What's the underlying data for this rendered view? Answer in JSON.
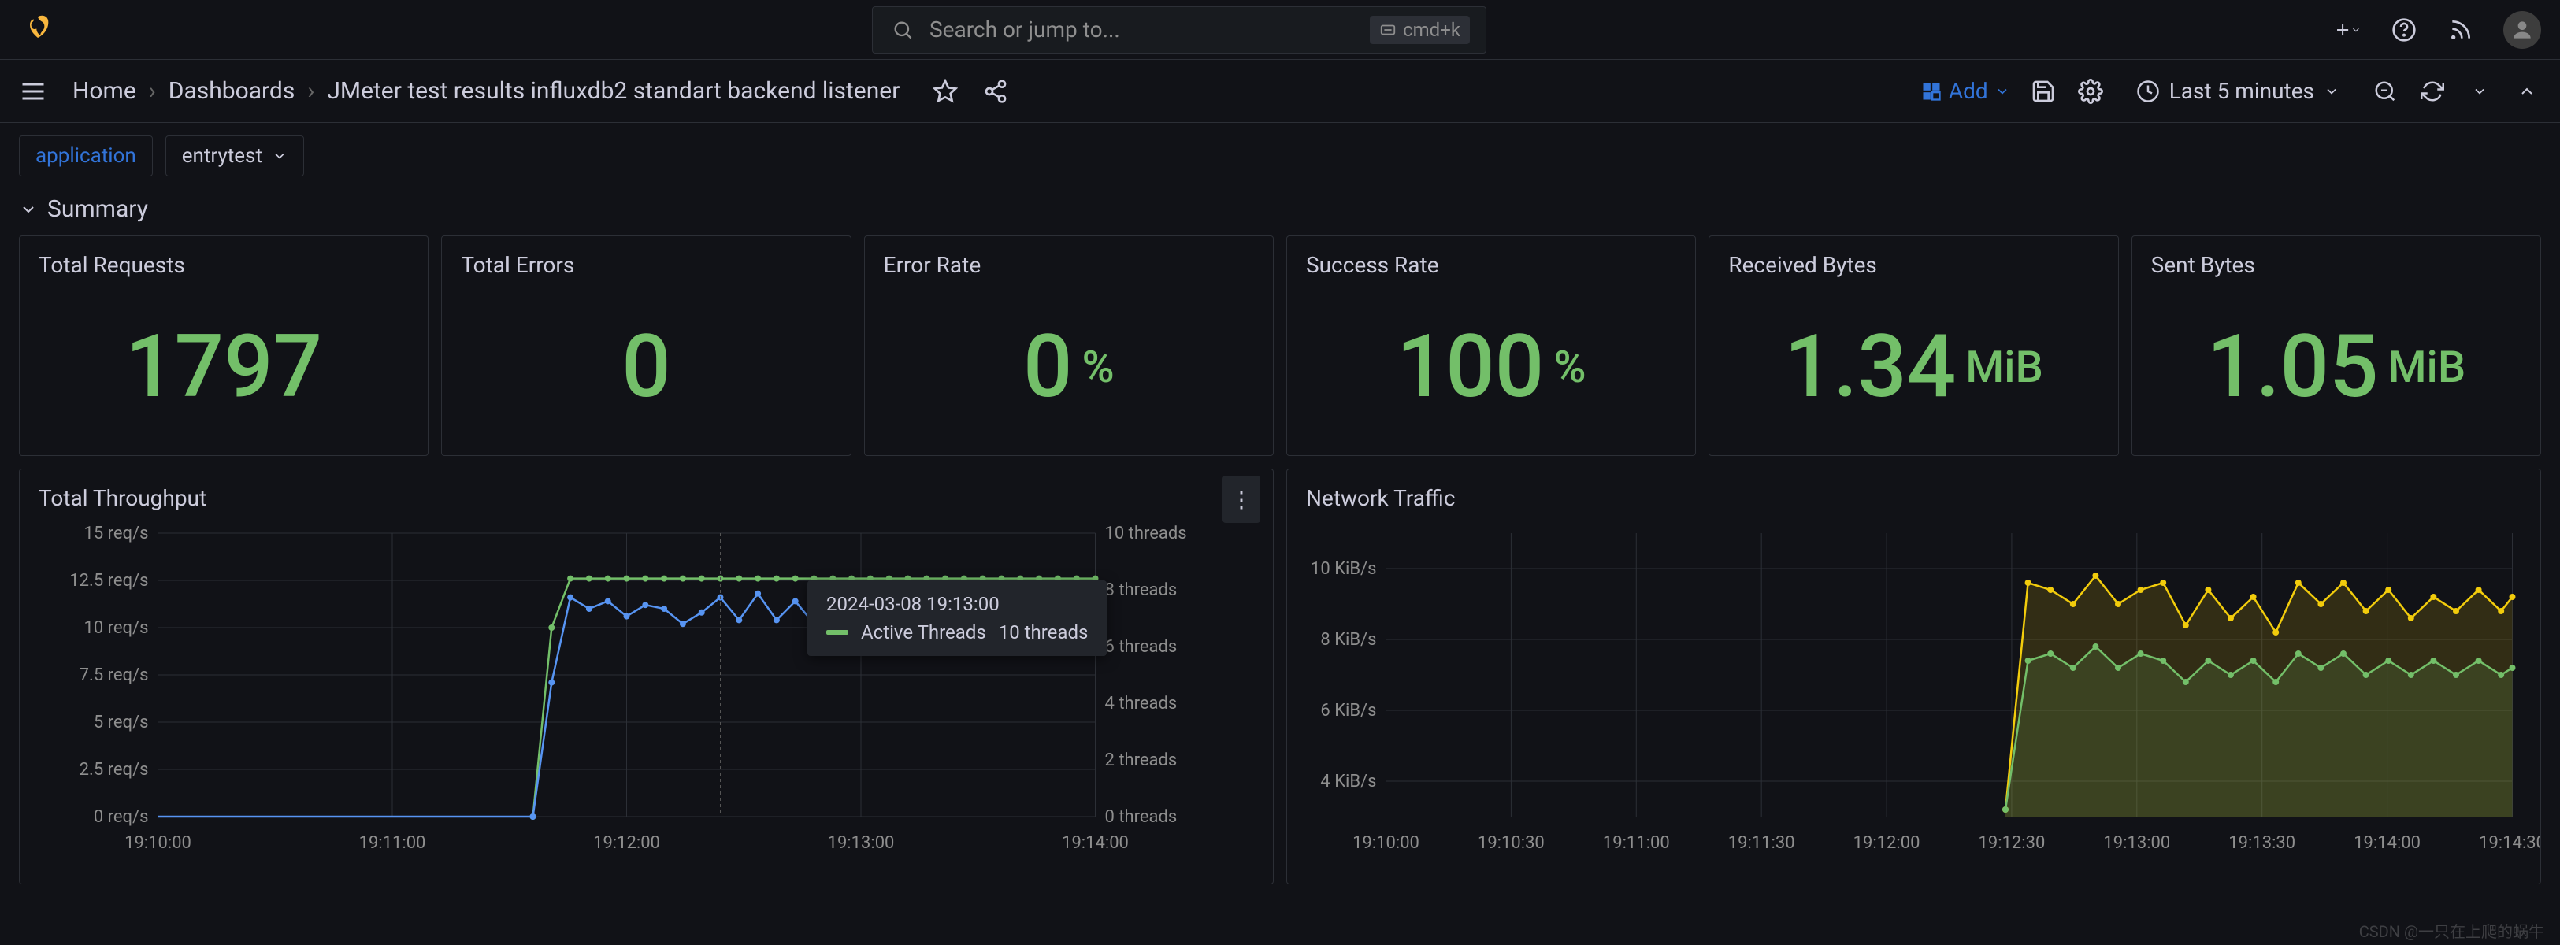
{
  "search": {
    "placeholder": "Search or jump to...",
    "shortcut": "cmd+k"
  },
  "breadcrumbs": {
    "home": "Home",
    "dashboards": "Dashboards",
    "title": "JMeter test results influxdb2 standart backend listener"
  },
  "toolbar": {
    "add": "Add",
    "time_label": "Last 5 minutes"
  },
  "vars": {
    "var1_label": "application",
    "var1_value": "entrytest"
  },
  "row": {
    "summary": "Summary"
  },
  "stats": {
    "total_requests": {
      "title": "Total Requests",
      "value": "1797"
    },
    "total_errors": {
      "title": "Total Errors",
      "value": "0"
    },
    "error_rate": {
      "title": "Error Rate",
      "value": "0",
      "unit": "%"
    },
    "success_rate": {
      "title": "Success Rate",
      "value": "100",
      "unit": "%"
    },
    "received_bytes": {
      "title": "Received Bytes",
      "value": "1.34",
      "unit": "MiB"
    },
    "sent_bytes": {
      "title": "Sent Bytes",
      "value": "1.05",
      "unit": "MiB"
    }
  },
  "chart1": {
    "title": "Total Throughput",
    "type": "line",
    "colors": {
      "throughput": "#5794f2",
      "threads": "#73bf69",
      "grid": "#2c2f36",
      "axis_text": "#8e8e8e"
    },
    "x_ticks": [
      "19:10:00",
      "19:11:00",
      "19:12:00",
      "19:13:00",
      "19:14:00"
    ],
    "y_left_ticks": [
      "0 req/s",
      "2.5 req/s",
      "5 req/s",
      "7.5 req/s",
      "10 req/s",
      "12.5 req/s",
      "15 req/s"
    ],
    "y_right_ticks": [
      "0 threads",
      "2 threads",
      "4 threads",
      "6 threads",
      "8 threads",
      "10 threads"
    ],
    "tooltip": {
      "ts": "2024-03-08 19:13:00",
      "series": "Active Threads",
      "value": "10 threads",
      "swatch": "#73bf69"
    },
    "throughput_series": [
      [
        0,
        0
      ],
      [
        5,
        0
      ],
      [
        10,
        0
      ],
      [
        15,
        0
      ],
      [
        20,
        0
      ],
      [
        25,
        0
      ],
      [
        30,
        0
      ],
      [
        35,
        0
      ],
      [
        38,
        0
      ],
      [
        40,
        0
      ],
      [
        42,
        7.1
      ],
      [
        44,
        11.6
      ],
      [
        46,
        11.0
      ],
      [
        48,
        11.4
      ],
      [
        50,
        10.6
      ],
      [
        52,
        11.2
      ],
      [
        54,
        11.0
      ],
      [
        56,
        10.2
      ],
      [
        58,
        10.8
      ],
      [
        60,
        11.6
      ],
      [
        62,
        10.4
      ],
      [
        64,
        11.8
      ],
      [
        66,
        10.4
      ],
      [
        68,
        11.4
      ],
      [
        70,
        10.2
      ],
      [
        72,
        11.0
      ],
      [
        74,
        10.4
      ],
      [
        76,
        11.6
      ],
      [
        78,
        10.6
      ],
      [
        80,
        11.2
      ],
      [
        82,
        10.4
      ],
      [
        84,
        11.4
      ],
      [
        86,
        10.6
      ],
      [
        88,
        11.0
      ],
      [
        90,
        10.4
      ],
      [
        92,
        11.4
      ],
      [
        94,
        10.8
      ],
      [
        96,
        11.2
      ],
      [
        98,
        10.6
      ],
      [
        100,
        11.0
      ]
    ],
    "threads_series": [
      [
        40,
        0
      ],
      [
        42,
        10
      ],
      [
        44,
        12.6
      ],
      [
        46,
        12.6
      ],
      [
        48,
        12.6
      ],
      [
        50,
        12.6
      ],
      [
        52,
        12.6
      ],
      [
        54,
        12.6
      ],
      [
        56,
        12.6
      ],
      [
        58,
        12.6
      ],
      [
        60,
        12.6
      ],
      [
        62,
        12.6
      ],
      [
        64,
        12.6
      ],
      [
        66,
        12.6
      ],
      [
        68,
        12.6
      ],
      [
        70,
        12.6
      ],
      [
        72,
        12.6
      ],
      [
        74,
        12.6
      ],
      [
        76,
        12.6
      ],
      [
        78,
        12.6
      ],
      [
        80,
        12.6
      ],
      [
        82,
        12.6
      ],
      [
        84,
        12.6
      ],
      [
        86,
        12.6
      ],
      [
        88,
        12.6
      ],
      [
        90,
        12.6
      ],
      [
        92,
        12.6
      ],
      [
        94,
        12.6
      ],
      [
        96,
        12.6
      ],
      [
        98,
        12.6
      ],
      [
        100,
        12.6
      ]
    ]
  },
  "chart2": {
    "title": "Network Traffic",
    "type": "area",
    "colors": {
      "recv": "#f2cc0c",
      "sent": "#73bf69",
      "grid": "#2c2f36"
    },
    "x_ticks": [
      "19:10:00",
      "19:10:30",
      "19:11:00",
      "19:11:30",
      "19:12:00",
      "19:12:30",
      "19:13:00",
      "19:13:30",
      "19:14:00",
      "19:14:30"
    ],
    "y_ticks": [
      "4 KiB/s",
      "6 KiB/s",
      "8 KiB/s",
      "10 KiB/s"
    ],
    "recv_series": [
      [
        55,
        3.2
      ],
      [
        57,
        9.6
      ],
      [
        59,
        9.4
      ],
      [
        61,
        9.0
      ],
      [
        63,
        9.8
      ],
      [
        65,
        9.0
      ],
      [
        67,
        9.4
      ],
      [
        69,
        9.6
      ],
      [
        71,
        8.4
      ],
      [
        73,
        9.4
      ],
      [
        75,
        8.6
      ],
      [
        77,
        9.2
      ],
      [
        79,
        8.2
      ],
      [
        81,
        9.6
      ],
      [
        83,
        9.0
      ],
      [
        85,
        9.6
      ],
      [
        87,
        8.8
      ],
      [
        89,
        9.4
      ],
      [
        91,
        8.6
      ],
      [
        93,
        9.2
      ],
      [
        95,
        8.8
      ],
      [
        97,
        9.4
      ],
      [
        99,
        8.8
      ],
      [
        100,
        9.2
      ]
    ],
    "sent_series": [
      [
        55,
        3.2
      ],
      [
        57,
        7.4
      ],
      [
        59,
        7.6
      ],
      [
        61,
        7.2
      ],
      [
        63,
        7.8
      ],
      [
        65,
        7.2
      ],
      [
        67,
        7.6
      ],
      [
        69,
        7.4
      ],
      [
        71,
        6.8
      ],
      [
        73,
        7.4
      ],
      [
        75,
        7.0
      ],
      [
        77,
        7.4
      ],
      [
        79,
        6.8
      ],
      [
        81,
        7.6
      ],
      [
        83,
        7.2
      ],
      [
        85,
        7.6
      ],
      [
        87,
        7.0
      ],
      [
        89,
        7.4
      ],
      [
        91,
        7.0
      ],
      [
        93,
        7.4
      ],
      [
        95,
        7.0
      ],
      [
        97,
        7.4
      ],
      [
        99,
        7.0
      ],
      [
        100,
        7.2
      ]
    ]
  },
  "watermark": "CSDN @一只在上爬的蜗牛"
}
